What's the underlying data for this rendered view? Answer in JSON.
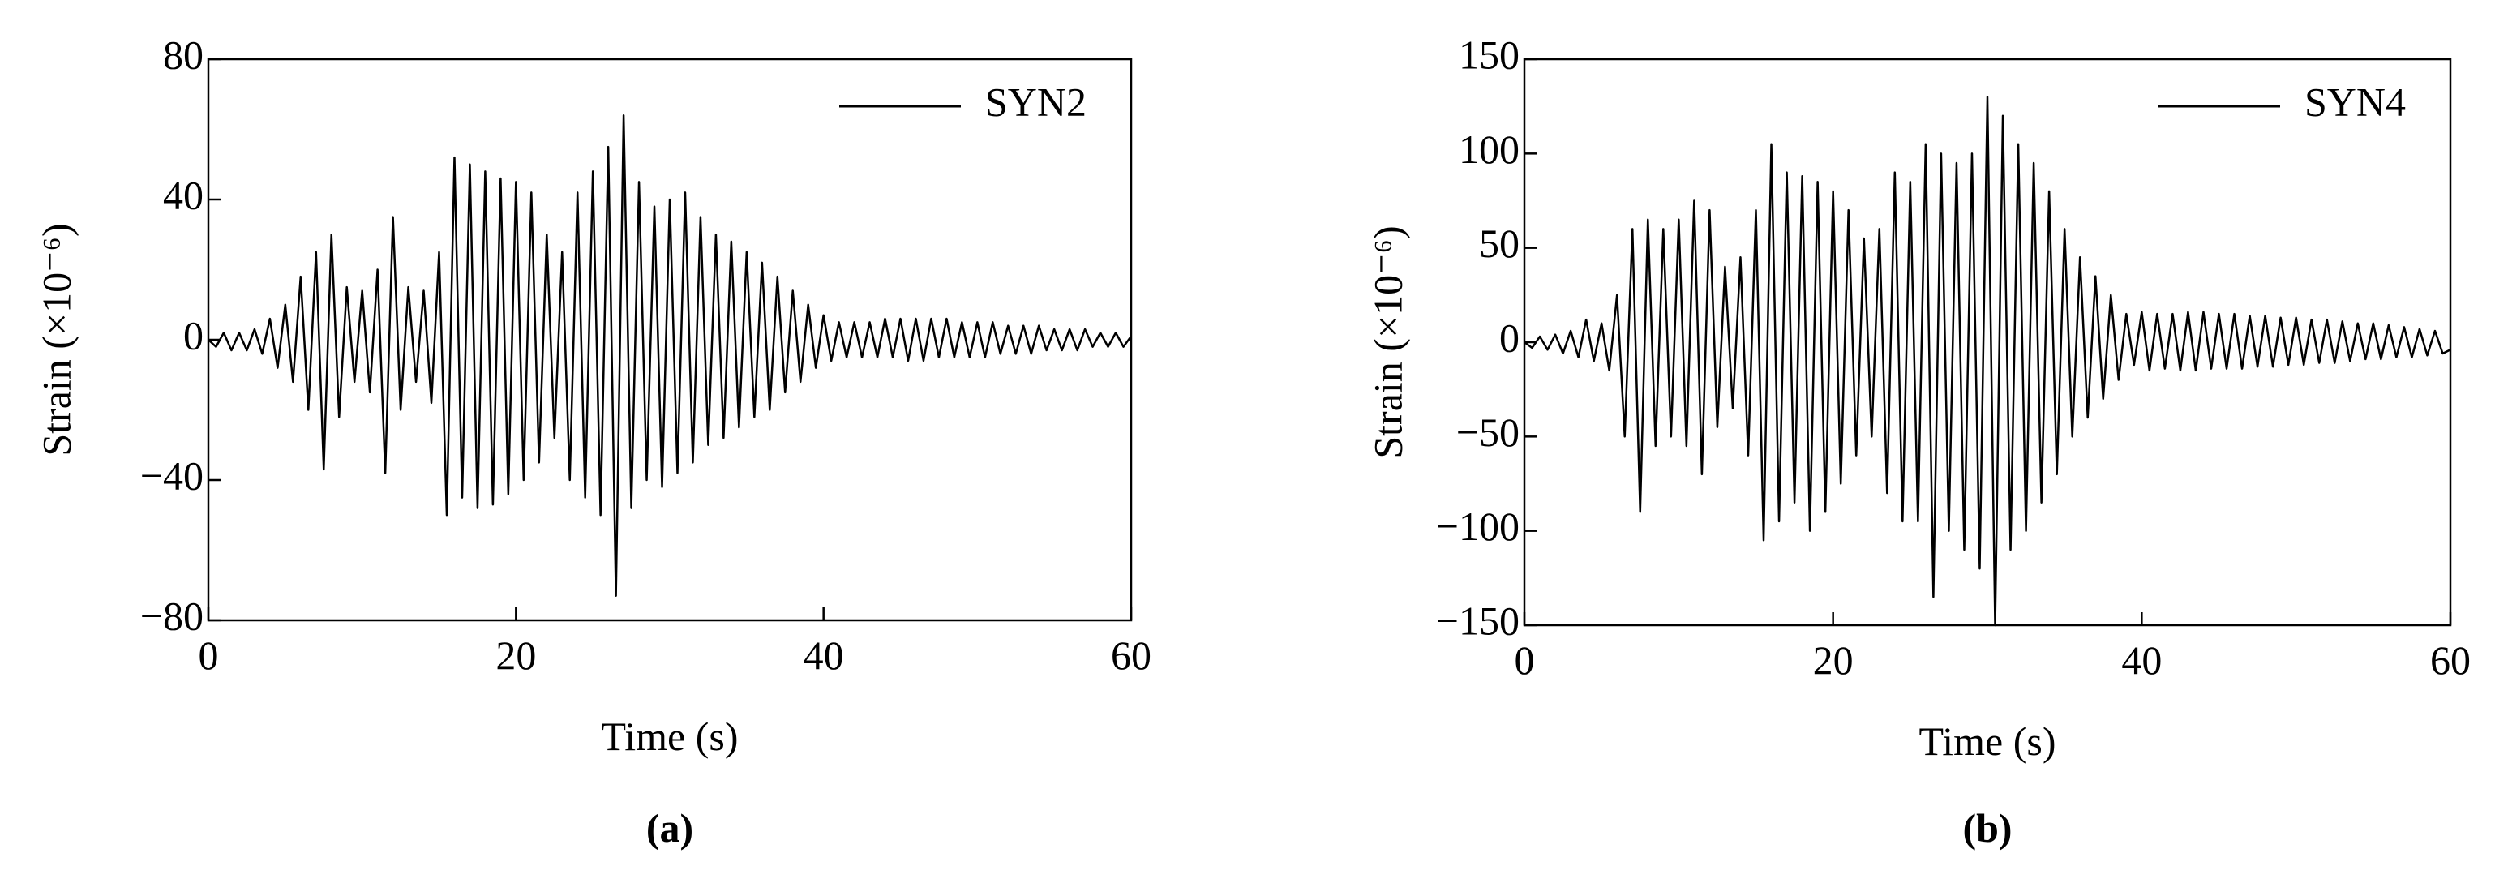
{
  "chart_data": [
    {
      "type": "line",
      "y_label": "Strain (×10⁻⁶)",
      "x_label": "Time (s)",
      "caption": "(a)",
      "x": [
        0,
        0.5,
        1,
        1.5,
        2,
        2.5,
        3,
        3.5,
        4,
        4.5,
        5,
        5.5,
        6,
        6.5,
        7,
        7.5,
        8,
        8.5,
        9,
        9.5,
        10,
        10.5,
        11,
        11.5,
        12,
        12.5,
        13,
        13.5,
        14,
        14.5,
        15,
        15.5,
        16,
        16.5,
        17,
        17.5,
        18,
        18.5,
        19,
        19.5,
        20,
        20.5,
        21,
        21.5,
        22,
        22.5,
        23,
        23.5,
        24,
        24.5,
        25,
        25.5,
        26,
        26.5,
        27,
        27.5,
        28,
        28.5,
        29,
        29.5,
        30,
        30.5,
        31,
        31.5,
        32,
        32.5,
        33,
        33.5,
        34,
        34.5,
        35,
        35.5,
        36,
        36.5,
        37,
        37.5,
        38,
        38.5,
        39,
        39.5,
        40,
        40.5,
        41,
        41.5,
        42,
        42.5,
        43,
        43.5,
        44,
        44.5,
        45,
        45.5,
        46,
        46.5,
        47,
        47.5,
        48,
        48.5,
        49,
        49.5,
        50,
        50.5,
        51,
        51.5,
        52,
        52.5,
        53,
        53.5,
        54,
        54.5,
        55,
        55.5,
        56,
        56.5,
        57,
        57.5,
        58,
        58.5,
        59,
        59.5,
        60
      ],
      "series": [
        {
          "name": "SYN2",
          "color": "#000000",
          "values": [
            0,
            -2,
            2,
            -3,
            2,
            -3,
            3,
            -4,
            6,
            -8,
            10,
            -12,
            18,
            -20,
            25,
            -37,
            30,
            -22,
            15,
            -12,
            14,
            -15,
            20,
            -38,
            35,
            -20,
            15,
            -12,
            14,
            -18,
            25,
            -50,
            52,
            -45,
            50,
            -48,
            48,
            -47,
            46,
            -44,
            45,
            -40,
            42,
            -35,
            30,
            -28,
            25,
            -40,
            42,
            -45,
            48,
            -50,
            55,
            -73,
            64,
            -48,
            45,
            -40,
            38,
            -42,
            40,
            -38,
            42,
            -35,
            35,
            -30,
            30,
            -28,
            28,
            -25,
            25,
            -22,
            22,
            -20,
            18,
            -15,
            14,
            -12,
            10,
            -8,
            7,
            -6,
            5,
            -5,
            5,
            -5,
            5,
            -5,
            6,
            -5,
            6,
            -6,
            6,
            -6,
            6,
            -5,
            6,
            -5,
            5,
            -5,
            5,
            -5,
            5,
            -4,
            4,
            -4,
            4,
            -4,
            4,
            -3,
            3,
            -3,
            3,
            -3,
            3,
            -2,
            2,
            -2,
            2,
            -2,
            1
          ]
        }
      ],
      "xlim": [
        0,
        60
      ],
      "xticks": [
        0,
        20,
        40,
        60
      ],
      "ylim": [
        -80,
        80
      ],
      "yticks": [
        {
          "value": -80,
          "label": "−80"
        },
        {
          "value": -40,
          "label": "−40"
        },
        0,
        40,
        80
      ],
      "legend": "upper right"
    },
    {
      "type": "line",
      "y_label": "Strain (×10⁻⁶)",
      "x_label": "Time (s)",
      "caption": "(b)",
      "x": [
        0,
        0.5,
        1,
        1.5,
        2,
        2.5,
        3,
        3.5,
        4,
        4.5,
        5,
        5.5,
        6,
        6.5,
        7,
        7.5,
        8,
        8.5,
        9,
        9.5,
        10,
        10.5,
        11,
        11.5,
        12,
        12.5,
        13,
        13.5,
        14,
        14.5,
        15,
        15.5,
        16,
        16.5,
        17,
        17.5,
        18,
        18.5,
        19,
        19.5,
        20,
        20.5,
        21,
        21.5,
        22,
        22.5,
        23,
        23.5,
        24,
        24.5,
        25,
        25.5,
        26,
        26.5,
        27,
        27.5,
        28,
        28.5,
        29,
        29.5,
        30,
        30.5,
        31,
        31.5,
        32,
        32.5,
        33,
        33.5,
        34,
        34.5,
        35,
        35.5,
        36,
        36.5,
        37,
        37.5,
        38,
        38.5,
        39,
        39.5,
        40,
        40.5,
        41,
        41.5,
        42,
        42.5,
        43,
        43.5,
        44,
        44.5,
        45,
        45.5,
        46,
        46.5,
        47,
        47.5,
        48,
        48.5,
        49,
        49.5,
        50,
        50.5,
        51,
        51.5,
        52,
        52.5,
        53,
        53.5,
        54,
        54.5,
        55,
        55.5,
        56,
        56.5,
        57,
        57.5,
        58,
        58.5,
        59,
        59.5,
        60
      ],
      "series": [
        {
          "name": "SYN4",
          "color": "#000000",
          "values": [
            0,
            -3,
            3,
            -4,
            4,
            -6,
            6,
            -8,
            12,
            -10,
            10,
            -15,
            25,
            -50,
            60,
            -90,
            65,
            -55,
            60,
            -50,
            65,
            -55,
            75,
            -70,
            70,
            -45,
            40,
            -35,
            45,
            -60,
            70,
            -105,
            105,
            -95,
            90,
            -85,
            88,
            -100,
            85,
            -90,
            80,
            -75,
            70,
            -60,
            55,
            -50,
            60,
            -80,
            90,
            -95,
            85,
            -95,
            105,
            -135,
            100,
            -100,
            95,
            -110,
            100,
            -120,
            130,
            -150,
            120,
            -110,
            105,
            -100,
            95,
            -85,
            80,
            -70,
            60,
            -50,
            45,
            -40,
            35,
            -30,
            25,
            -20,
            15,
            -12,
            16,
            -15,
            15,
            -14,
            15,
            -15,
            16,
            -15,
            16,
            -14,
            15,
            -14,
            15,
            -14,
            14,
            -13,
            14,
            -13,
            13,
            -12,
            13,
            -12,
            12,
            -11,
            12,
            -11,
            11,
            -10,
            10,
            -9,
            10,
            -9,
            9,
            -8,
            8,
            -8,
            7,
            -7,
            6,
            -6,
            -4
          ]
        }
      ],
      "xlim": [
        0,
        60
      ],
      "xticks": [
        0,
        20,
        40,
        60
      ],
      "ylim": [
        -150,
        150
      ],
      "yticks": [
        {
          "value": -150,
          "label": "−150"
        },
        {
          "value": -100,
          "label": "−100"
        },
        {
          "value": -50,
          "label": "−50"
        },
        0,
        50,
        100,
        150
      ],
      "legend": "upper right"
    }
  ]
}
